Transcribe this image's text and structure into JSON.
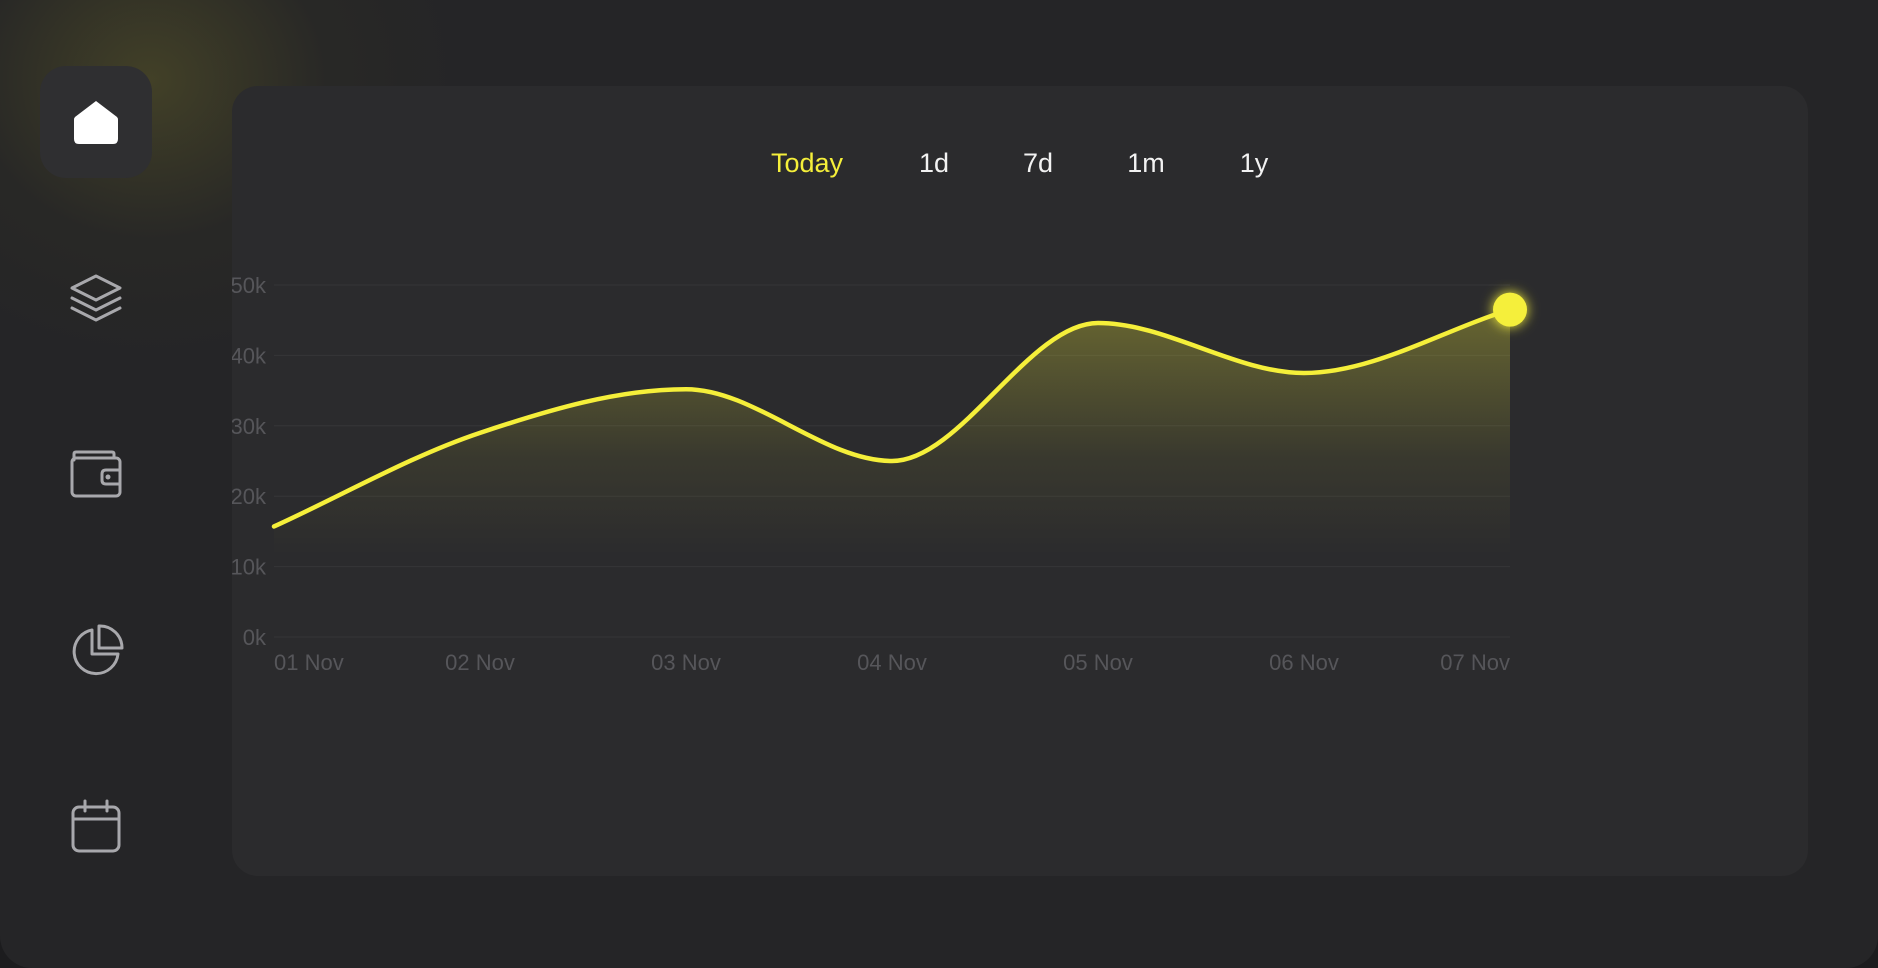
{
  "nav": {
    "items": [
      {
        "icon": "home-icon",
        "active": true
      },
      {
        "icon": "layers-icon",
        "active": false
      },
      {
        "icon": "wallet-icon",
        "active": false
      },
      {
        "icon": "pie-chart-icon",
        "active": false
      },
      {
        "icon": "calendar-icon",
        "active": false
      }
    ]
  },
  "tabs": [
    {
      "label": "Today",
      "active": true
    },
    {
      "label": "1d",
      "active": false
    },
    {
      "label": "7d",
      "active": false
    },
    {
      "label": "1m",
      "active": false
    },
    {
      "label": "1y",
      "active": false
    }
  ],
  "colors": {
    "accent": "#f5ef3a",
    "panel": "#2b2b2d",
    "background": "#252527",
    "axis_text": "#56565a",
    "grid": "#363638"
  },
  "chart_data": {
    "type": "area",
    "title": "",
    "xlabel": "",
    "ylabel": "",
    "categories": [
      "01 Nov",
      "02 Nov",
      "03 Nov",
      "04 Nov",
      "05 Nov",
      "06 Nov",
      "07 Nov"
    ],
    "series": [
      {
        "values": [
          15700,
          29000,
          35200,
          25000,
          44600,
          37500,
          46500
        ]
      }
    ],
    "ylim": [
      0,
      50000
    ],
    "yticks": [
      0,
      10000,
      20000,
      30000,
      40000,
      50000
    ],
    "ytick_labels": [
      "0k",
      "10k",
      "20k",
      "30k",
      "40k",
      "50k"
    ],
    "grid": true,
    "highlight_last_point": true
  }
}
